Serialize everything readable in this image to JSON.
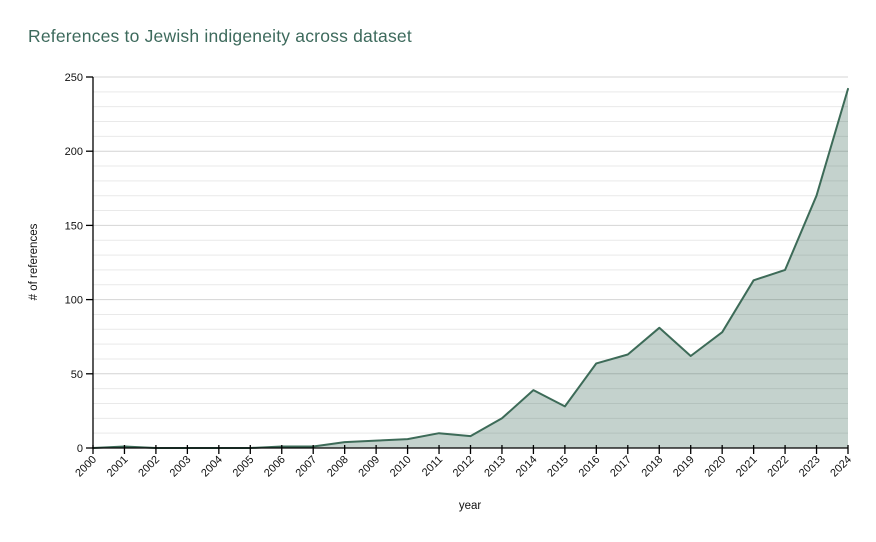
{
  "chart": {
    "title": "References to Jewish indigeneity across dataset"
  },
  "chart_data": {
    "type": "area",
    "title": "References to Jewish indigeneity across dataset",
    "xlabel": "year",
    "ylabel": "# of references",
    "x": [
      2000,
      2001,
      2002,
      2003,
      2004,
      2005,
      2006,
      2007,
      2008,
      2009,
      2010,
      2011,
      2012,
      2013,
      2014,
      2015,
      2016,
      2017,
      2018,
      2019,
      2020,
      2021,
      2022,
      2023,
      2024
    ],
    "values": [
      0,
      1,
      0,
      0,
      0,
      0,
      1,
      1,
      4,
      5,
      6,
      10,
      8,
      20,
      39,
      28,
      57,
      63,
      81,
      62,
      78,
      113,
      120,
      170,
      242
    ],
    "ylim": [
      0,
      250
    ],
    "yticks": [
      0,
      50,
      100,
      150,
      200,
      250
    ],
    "minor_grid_step": 10,
    "major_grid_step": 50,
    "grid": true,
    "legend": "none",
    "colors": {
      "title": "#3d6a5c",
      "line": "#3d6b58",
      "fill": "#3d6b58",
      "fill_opacity": 0.3,
      "axis": "#000000",
      "grid_minor": "#e9e9e9",
      "grid_major": "#d4d4d4",
      "tick_label": "#111111"
    }
  }
}
